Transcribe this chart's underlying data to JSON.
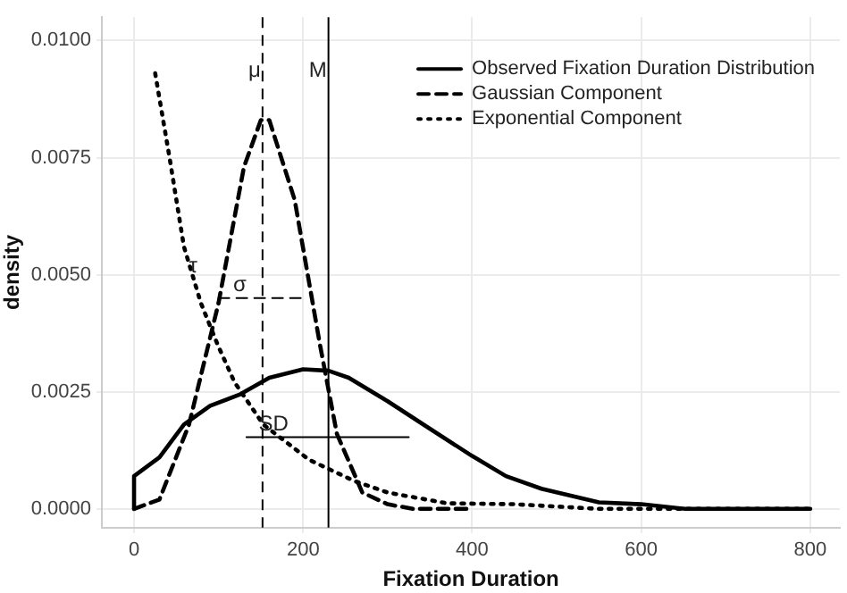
{
  "chart_data": {
    "type": "line",
    "xlabel": "Fixation Duration",
    "ylabel": "density",
    "xlim": [
      -38,
      835
    ],
    "ylim": [
      -0.0004,
      0.0105
    ],
    "xticks": [
      0,
      200,
      400,
      600,
      800
    ],
    "yticks": [
      {
        "value": 0,
        "label": "0.0000"
      },
      {
        "value": 0.0025,
        "label": "0.0025"
      },
      {
        "value": 0.005,
        "label": "0.0050"
      },
      {
        "value": 0.0075,
        "label": "0.0075"
      },
      {
        "value": 0.01,
        "label": "0.0100"
      }
    ],
    "grid": true,
    "legend": "top right",
    "marker": "none",
    "series": [
      {
        "name": "Observed Fixation Duration Distribution",
        "color": "#000000",
        "line_style": "solid",
        "x": [
          0,
          0,
          30,
          59,
          90,
          126,
          160,
          200,
          230,
          254,
          300,
          345,
          400,
          440,
          482,
          550,
          600,
          652,
          720,
          800
        ],
        "values": [
          0,
          0.0007,
          0.0011,
          0.0018,
          0.0022,
          0.00245,
          0.0028,
          0.00298,
          0.00295,
          0.0028,
          0.0023,
          0.00177,
          0.00113,
          0.0007,
          0.00043,
          0.00014,
          0.0001,
          0,
          0,
          0
        ]
      },
      {
        "name": "Gaussian Component",
        "color": "#000000",
        "line_style": "dashed",
        "x": [
          0,
          30,
          65,
          100,
          130,
          150,
          160,
          190,
          220,
          240,
          270,
          300,
          330,
          400
        ],
        "values": [
          0,
          0.0002,
          0.0018,
          0.0044,
          0.0073,
          0.0083,
          0.0083,
          0.0066,
          0.0035,
          0.0016,
          0.00035,
          0.0001,
          0,
          0
        ]
      },
      {
        "name": "Exponential Component",
        "color": "#000000",
        "line_style": "dotted",
        "x": [
          25,
          42,
          59,
          79,
          99,
          119,
          153,
          207,
          260,
          300,
          370,
          450,
          550,
          650,
          800
        ],
        "values": [
          0.0093,
          0.0075,
          0.0056,
          0.0044,
          0.0035,
          0.0027,
          0.0018,
          0.00105,
          0.0006,
          0.00035,
          0.00012,
          0.0001,
          0,
          0,
          0
        ]
      },
      {
        "color": "#000000",
        "line_style": "dashed",
        "x": [
          100,
          205
        ],
        "values": [
          0.0045,
          0.0045
        ]
      },
      {
        "color": "#000000",
        "line_style": "solid",
        "x": [
          133,
          325
        ],
        "values": [
          0.00153,
          0.00153
        ]
      }
    ],
    "ref_lines": [
      {
        "axis": "x",
        "value": 152,
        "label": "μ",
        "line_style": "dashed"
      },
      {
        "axis": "x",
        "value": 230,
        "label": "M",
        "line_style": "solid"
      }
    ],
    "annotations": [
      {
        "text": "τ",
        "x": 70,
        "y": 0.0049
      },
      {
        "text": "σ",
        "x": 125,
        "y": 0.0045
      },
      {
        "text": "SD",
        "x": 165,
        "y": 0.00153
      }
    ]
  }
}
